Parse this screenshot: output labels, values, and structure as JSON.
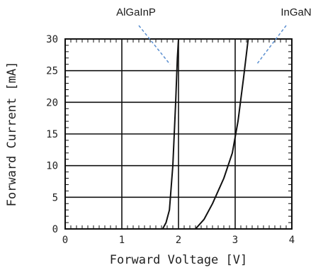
{
  "chart_data": {
    "type": "line",
    "title": "",
    "xlabel": "Forward Voltage [V]",
    "ylabel": "Forward Current [mA]",
    "xlim": [
      0,
      4
    ],
    "ylim": [
      0,
      30
    ],
    "x_ticks": [
      "0",
      "1",
      "2",
      "3",
      "4"
    ],
    "y_ticks": [
      "0",
      "5",
      "10",
      "15",
      "20",
      "25",
      "30"
    ],
    "grid": true,
    "series": [
      {
        "name": "AlGaInP",
        "color": "#111111",
        "points": [
          [
            1.72,
            0.0
          ],
          [
            1.78,
            1.0
          ],
          [
            1.84,
            3.0
          ],
          [
            1.9,
            10.0
          ],
          [
            1.95,
            20.0
          ],
          [
            1.98,
            27.0
          ],
          [
            2.0,
            30.0
          ]
        ]
      },
      {
        "name": "InGaN",
        "color": "#111111",
        "points": [
          [
            2.3,
            0.0
          ],
          [
            2.45,
            1.5
          ],
          [
            2.6,
            4.0
          ],
          [
            2.8,
            8.0
          ],
          [
            2.95,
            12.0
          ],
          [
            3.05,
            17.0
          ],
          [
            3.15,
            24.0
          ],
          [
            3.23,
            30.0
          ]
        ]
      }
    ],
    "annotations": [
      {
        "text": "AlGaInP",
        "target_series": "AlGaInP",
        "line_color": "#5b8fd0"
      },
      {
        "text": "InGaN",
        "target_series": "InGaN",
        "line_color": "#5b8fd0"
      }
    ]
  }
}
